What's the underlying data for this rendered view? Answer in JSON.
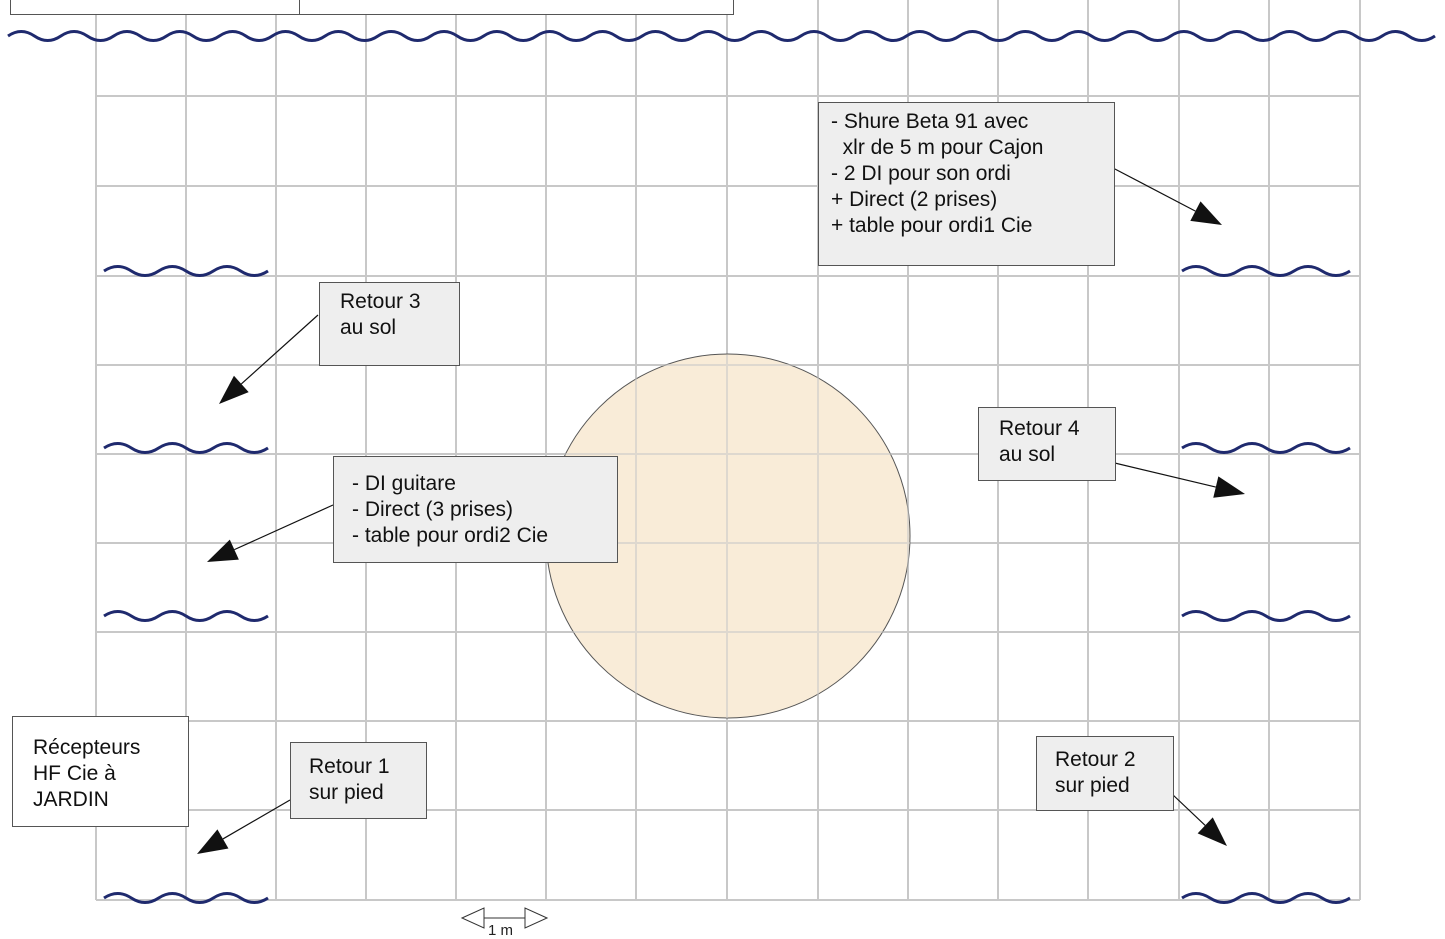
{
  "colors": {
    "grid": "#c8c8c8",
    "curtain": "#1f2a6e",
    "circle_fill": "#f9ecd8",
    "circle_stroke": "#555555",
    "box_fill": "#eeeeee",
    "arrow": "#111111"
  },
  "notes": {
    "shure": "- Shure Beta 91 avec\n  xlr de 5 m pour Cajon\n- 2 DI pour son ordi\n+ Direct (2 prises)\n+ table pour ordi1 Cie",
    "retour3": "Retour 3\nau sol",
    "retour4": "Retour 4\nau sol",
    "di_guitare": "- DI guitare\n- Direct (3 prises)\n- table pour ordi2 Cie",
    "recepteurs": "Récepteurs\nHF Cie à\nJARDIN",
    "retour1": "Retour 1\nsur pied",
    "retour2": "Retour 2\nsur pied"
  },
  "scale": {
    "label": "1 m"
  }
}
